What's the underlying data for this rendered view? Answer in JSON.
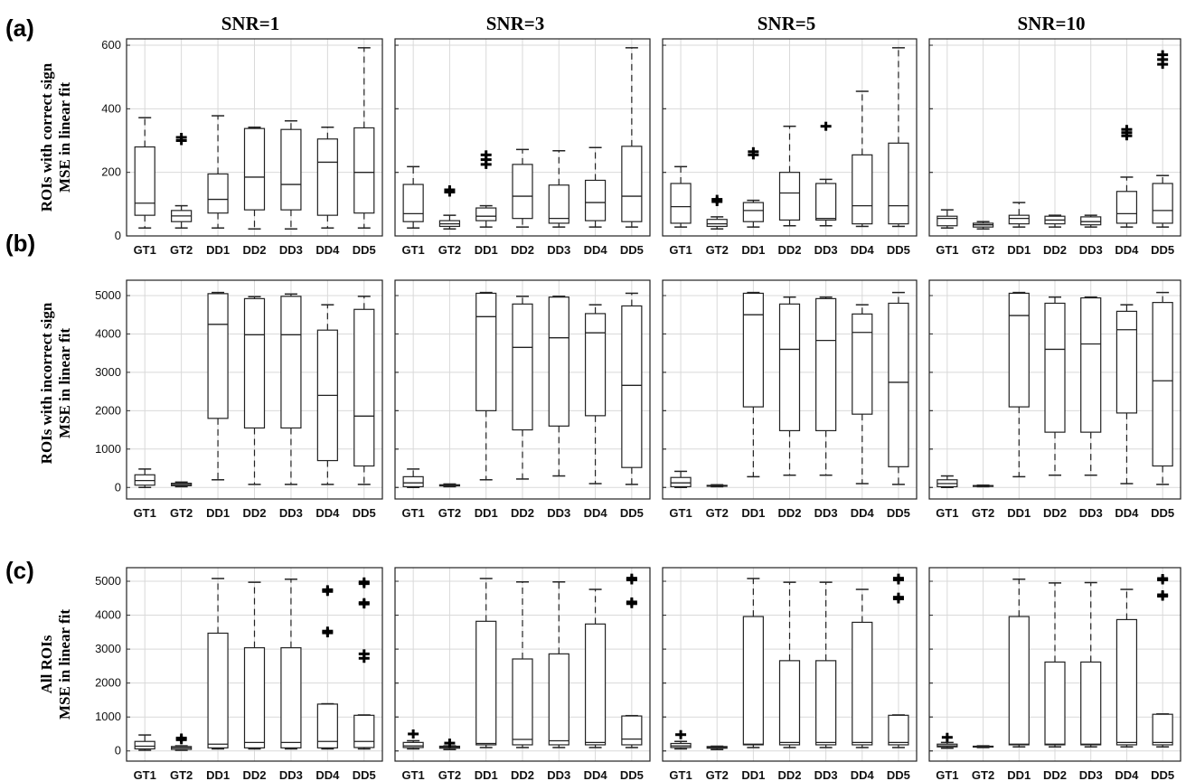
{
  "columns": [
    "SNR=1",
    "SNR=3",
    "SNR=5",
    "SNR=10"
  ],
  "rows": [
    {
      "tag": "(a)",
      "label1": "ROIs with correct sign",
      "label2": "MSE in linear fit"
    },
    {
      "tag": "(b)",
      "label1": "ROIs with incorrect sign",
      "label2": "MSE in linear fit"
    },
    {
      "tag": "(c)",
      "label1": "All ROIs",
      "label2": "MSE in linear fit"
    }
  ],
  "colors": {
    "box": "#222222",
    "grid": "#d9d9d9",
    "outlier": "#000000"
  },
  "chart_data": [
    {
      "type": "box",
      "row": 0,
      "categories": [
        "GT1",
        "GT2",
        "DD1",
        "DD2",
        "DD3",
        "DD4",
        "DD5"
      ],
      "ylim": [
        0,
        620
      ],
      "yticks": [
        0,
        200,
        400,
        600
      ],
      "grid": true,
      "panels": [
        {
          "title": "SNR=1",
          "boxes": [
            {
              "min": 25,
              "q1": 65,
              "median": 103,
              "q3": 280,
              "max": 372,
              "outliers": []
            },
            {
              "min": 25,
              "q1": 45,
              "median": 63,
              "q3": 80,
              "max": 95,
              "outliers": [
                300,
                310
              ]
            },
            {
              "min": 25,
              "q1": 72,
              "median": 115,
              "q3": 195,
              "max": 378,
              "outliers": []
            },
            {
              "min": 22,
              "q1": 82,
              "median": 185,
              "q3": 338,
              "max": 342,
              "outliers": []
            },
            {
              "min": 22,
              "q1": 82,
              "median": 162,
              "q3": 335,
              "max": 362,
              "outliers": []
            },
            {
              "min": 25,
              "q1": 65,
              "median": 232,
              "q3": 305,
              "max": 342,
              "outliers": []
            },
            {
              "min": 25,
              "q1": 72,
              "median": 200,
              "q3": 340,
              "max": 592,
              "outliers": []
            }
          ]
        },
        {
          "title": "SNR=3",
          "boxes": [
            {
              "min": 25,
              "q1": 45,
              "median": 70,
              "q3": 162,
              "max": 218,
              "outliers": []
            },
            {
              "min": 22,
              "q1": 30,
              "median": 38,
              "q3": 48,
              "max": 65,
              "outliers": [
                138,
                145
              ]
            },
            {
              "min": 28,
              "q1": 48,
              "median": 62,
              "q3": 88,
              "max": 95,
              "outliers": [
                225,
                240,
                255
              ]
            },
            {
              "min": 28,
              "q1": 55,
              "median": 125,
              "q3": 225,
              "max": 272,
              "outliers": []
            },
            {
              "min": 28,
              "q1": 40,
              "median": 55,
              "q3": 160,
              "max": 268,
              "outliers": []
            },
            {
              "min": 28,
              "q1": 48,
              "median": 105,
              "q3": 175,
              "max": 278,
              "outliers": []
            },
            {
              "min": 28,
              "q1": 45,
              "median": 125,
              "q3": 282,
              "max": 592,
              "outliers": []
            }
          ]
        },
        {
          "title": "SNR=5",
          "boxes": [
            {
              "min": 28,
              "q1": 40,
              "median": 92,
              "q3": 165,
              "max": 218,
              "outliers": []
            },
            {
              "min": 22,
              "q1": 30,
              "median": 38,
              "q3": 52,
              "max": 60,
              "outliers": [
                108,
                115
              ]
            },
            {
              "min": 28,
              "q1": 45,
              "median": 80,
              "q3": 105,
              "max": 112,
              "outliers": [
                255,
                265
              ]
            },
            {
              "min": 32,
              "q1": 50,
              "median": 135,
              "q3": 200,
              "max": 345,
              "outliers": []
            },
            {
              "min": 32,
              "q1": 50,
              "median": 55,
              "q3": 165,
              "max": 178,
              "outliers": [
                345
              ]
            },
            {
              "min": 30,
              "q1": 38,
              "median": 95,
              "q3": 255,
              "max": 455,
              "outliers": []
            },
            {
              "min": 30,
              "q1": 38,
              "median": 95,
              "q3": 292,
              "max": 592,
              "outliers": []
            }
          ]
        },
        {
          "title": "SNR=10",
          "boxes": [
            {
              "min": 25,
              "q1": 32,
              "median": 55,
              "q3": 62,
              "max": 82,
              "outliers": []
            },
            {
              "min": 22,
              "q1": 28,
              "median": 35,
              "q3": 40,
              "max": 45,
              "outliers": []
            },
            {
              "min": 28,
              "q1": 38,
              "median": 55,
              "q3": 65,
              "max": 105,
              "outliers": []
            },
            {
              "min": 28,
              "q1": 38,
              "median": 50,
              "q3": 62,
              "max": 65,
              "outliers": []
            },
            {
              "min": 28,
              "q1": 35,
              "median": 45,
              "q3": 60,
              "max": 65,
              "outliers": []
            },
            {
              "min": 28,
              "q1": 40,
              "median": 70,
              "q3": 140,
              "max": 185,
              "outliers": [
                315,
                325,
                335
              ]
            },
            {
              "min": 28,
              "q1": 40,
              "median": 80,
              "q3": 165,
              "max": 190,
              "outliers": [
                540,
                555,
                570
              ]
            }
          ]
        }
      ]
    },
    {
      "type": "box",
      "row": 1,
      "categories": [
        "GT1",
        "GT2",
        "DD1",
        "DD2",
        "DD3",
        "DD4",
        "DD5"
      ],
      "ylim": [
        -300,
        5400
      ],
      "yticks": [
        0,
        1000,
        2000,
        3000,
        4000,
        5000
      ],
      "grid": true,
      "panels": [
        {
          "title": "SNR=1",
          "boxes": [
            {
              "min": 0,
              "q1": 60,
              "median": 180,
              "q3": 330,
              "max": 480,
              "outliers": []
            },
            {
              "min": 20,
              "q1": 45,
              "median": 75,
              "q3": 110,
              "max": 140,
              "outliers": []
            },
            {
              "min": 200,
              "q1": 1800,
              "median": 4250,
              "q3": 5050,
              "max": 5080,
              "outliers": []
            },
            {
              "min": 80,
              "q1": 1550,
              "median": 3980,
              "q3": 4920,
              "max": 4970,
              "outliers": []
            },
            {
              "min": 80,
              "q1": 1550,
              "median": 3980,
              "q3": 4980,
              "max": 5040,
              "outliers": []
            },
            {
              "min": 80,
              "q1": 700,
              "median": 2400,
              "q3": 4100,
              "max": 4760,
              "outliers": []
            },
            {
              "min": 80,
              "q1": 560,
              "median": 1860,
              "q3": 4640,
              "max": 4980,
              "outliers": []
            }
          ]
        },
        {
          "title": "SNR=3",
          "boxes": [
            {
              "min": 0,
              "q1": 20,
              "median": 120,
              "q3": 280,
              "max": 480,
              "outliers": []
            },
            {
              "min": 20,
              "q1": 40,
              "median": 55,
              "q3": 70,
              "max": 90,
              "outliers": []
            },
            {
              "min": 200,
              "q1": 2000,
              "median": 4450,
              "q3": 5060,
              "max": 5080,
              "outliers": []
            },
            {
              "min": 220,
              "q1": 1500,
              "median": 3650,
              "q3": 4780,
              "max": 4980,
              "outliers": []
            },
            {
              "min": 300,
              "q1": 1600,
              "median": 3900,
              "q3": 4960,
              "max": 4980,
              "outliers": []
            },
            {
              "min": 100,
              "q1": 1870,
              "median": 4030,
              "q3": 4530,
              "max": 4760,
              "outliers": []
            },
            {
              "min": 80,
              "q1": 520,
              "median": 2660,
              "q3": 4730,
              "max": 5060,
              "outliers": []
            }
          ]
        },
        {
          "title": "SNR=5",
          "boxes": [
            {
              "min": 0,
              "q1": 20,
              "median": 120,
              "q3": 260,
              "max": 420,
              "outliers": []
            },
            {
              "min": 20,
              "q1": 35,
              "median": 45,
              "q3": 55,
              "max": 70,
              "outliers": []
            },
            {
              "min": 280,
              "q1": 2100,
              "median": 4500,
              "q3": 5060,
              "max": 5080,
              "outliers": []
            },
            {
              "min": 320,
              "q1": 1480,
              "median": 3600,
              "q3": 4780,
              "max": 4960,
              "outliers": []
            },
            {
              "min": 320,
              "q1": 1480,
              "median": 3830,
              "q3": 4920,
              "max": 4960,
              "outliers": []
            },
            {
              "min": 100,
              "q1": 1910,
              "median": 4040,
              "q3": 4520,
              "max": 4760,
              "outliers": []
            },
            {
              "min": 80,
              "q1": 540,
              "median": 2740,
              "q3": 4800,
              "max": 5080,
              "outliers": []
            }
          ]
        },
        {
          "title": "SNR=10",
          "boxes": [
            {
              "min": 0,
              "q1": 20,
              "median": 100,
              "q3": 200,
              "max": 300,
              "outliers": []
            },
            {
              "min": 20,
              "q1": 30,
              "median": 40,
              "q3": 50,
              "max": 60,
              "outliers": []
            },
            {
              "min": 280,
              "q1": 2100,
              "median": 4480,
              "q3": 5060,
              "max": 5080,
              "outliers": []
            },
            {
              "min": 320,
              "q1": 1440,
              "median": 3600,
              "q3": 4800,
              "max": 4960,
              "outliers": []
            },
            {
              "min": 320,
              "q1": 1440,
              "median": 3740,
              "q3": 4940,
              "max": 4960,
              "outliers": []
            },
            {
              "min": 100,
              "q1": 1940,
              "median": 4110,
              "q3": 4590,
              "max": 4760,
              "outliers": []
            },
            {
              "min": 80,
              "q1": 560,
              "median": 2780,
              "q3": 4820,
              "max": 5080,
              "outliers": []
            }
          ]
        }
      ]
    },
    {
      "type": "box",
      "row": 2,
      "categories": [
        "GT1",
        "GT2",
        "DD1",
        "DD2",
        "DD3",
        "DD4",
        "DD5"
      ],
      "ylim": [
        -300,
        5400
      ],
      "yticks": [
        0,
        1000,
        2000,
        3000,
        4000,
        5000
      ],
      "grid": true,
      "panels": [
        {
          "title": "SNR=1",
          "boxes": [
            {
              "min": 20,
              "q1": 60,
              "median": 140,
              "q3": 280,
              "max": 470,
              "outliers": []
            },
            {
              "min": 20,
              "q1": 45,
              "median": 90,
              "q3": 130,
              "max": 150,
              "outliers": [
                330,
                380
              ]
            },
            {
              "min": 60,
              "q1": 90,
              "median": 200,
              "q3": 3470,
              "max": 5080,
              "outliers": []
            },
            {
              "min": 60,
              "q1": 90,
              "median": 250,
              "q3": 3040,
              "max": 4970,
              "outliers": []
            },
            {
              "min": 60,
              "q1": 90,
              "median": 250,
              "q3": 3040,
              "max": 5060,
              "outliers": []
            },
            {
              "min": 60,
              "q1": 90,
              "median": 280,
              "q3": 1380,
              "max": 1390,
              "outliers": [
                3480,
                3530,
                4700,
                4750
              ]
            },
            {
              "min": 60,
              "q1": 100,
              "median": 280,
              "q3": 1050,
              "max": 1060,
              "outliers": [
                2730,
                2860,
                4330,
                4370,
                4930,
                4980
              ]
            }
          ]
        },
        {
          "title": "SNR=3",
          "boxes": [
            {
              "min": 60,
              "q1": 100,
              "median": 150,
              "q3": 250,
              "max": 300,
              "outliers": [
                500
              ]
            },
            {
              "min": 40,
              "q1": 80,
              "median": 110,
              "q3": 140,
              "max": 150,
              "outliers": [
                230
              ]
            },
            {
              "min": 100,
              "q1": 180,
              "median": 220,
              "q3": 3820,
              "max": 5080,
              "outliers": []
            },
            {
              "min": 100,
              "q1": 180,
              "median": 340,
              "q3": 2710,
              "max": 4980,
              "outliers": []
            },
            {
              "min": 100,
              "q1": 180,
              "median": 300,
              "q3": 2860,
              "max": 4980,
              "outliers": []
            },
            {
              "min": 100,
              "q1": 180,
              "median": 250,
              "q3": 3740,
              "max": 4760,
              "outliers": []
            },
            {
              "min": 100,
              "q1": 180,
              "median": 350,
              "q3": 1030,
              "max": 1040,
              "outliers": [
                4340,
                4390,
                5040,
                5090
              ]
            }
          ]
        },
        {
          "title": "SNR=5",
          "boxes": [
            {
              "min": 60,
              "q1": 100,
              "median": 150,
              "q3": 220,
              "max": 280,
              "outliers": [
                480
              ]
            },
            {
              "min": 40,
              "q1": 80,
              "median": 100,
              "q3": 130,
              "max": 140,
              "outliers": []
            },
            {
              "min": 100,
              "q1": 180,
              "median": 200,
              "q3": 3960,
              "max": 5080,
              "outliers": []
            },
            {
              "min": 100,
              "q1": 180,
              "median": 250,
              "q3": 2660,
              "max": 4970,
              "outliers": []
            },
            {
              "min": 100,
              "q1": 180,
              "median": 250,
              "q3": 2660,
              "max": 4970,
              "outliers": []
            },
            {
              "min": 100,
              "q1": 180,
              "median": 250,
              "q3": 3790,
              "max": 4760,
              "outliers": []
            },
            {
              "min": 100,
              "q1": 180,
              "median": 250,
              "q3": 1050,
              "max": 1060,
              "outliers": [
                4480,
                4530,
                5040,
                5090
              ]
            }
          ]
        },
        {
          "title": "SNR=10",
          "boxes": [
            {
              "min": 80,
              "q1": 120,
              "median": 150,
              "q3": 200,
              "max": 250,
              "outliers": [
                400
              ]
            },
            {
              "min": 100,
              "q1": 120,
              "median": 130,
              "q3": 140,
              "max": 150,
              "outliers": []
            },
            {
              "min": 120,
              "q1": 180,
              "median": 200,
              "q3": 3960,
              "max": 5060,
              "outliers": []
            },
            {
              "min": 120,
              "q1": 180,
              "median": 200,
              "q3": 2620,
              "max": 4950,
              "outliers": []
            },
            {
              "min": 120,
              "q1": 180,
              "median": 200,
              "q3": 2620,
              "max": 4960,
              "outliers": []
            },
            {
              "min": 120,
              "q1": 180,
              "median": 250,
              "q3": 3870,
              "max": 4760,
              "outliers": []
            },
            {
              "min": 120,
              "q1": 180,
              "median": 250,
              "q3": 1080,
              "max": 1090,
              "outliers": [
                4560,
                4600,
                5040,
                5080
              ]
            }
          ]
        }
      ]
    }
  ]
}
